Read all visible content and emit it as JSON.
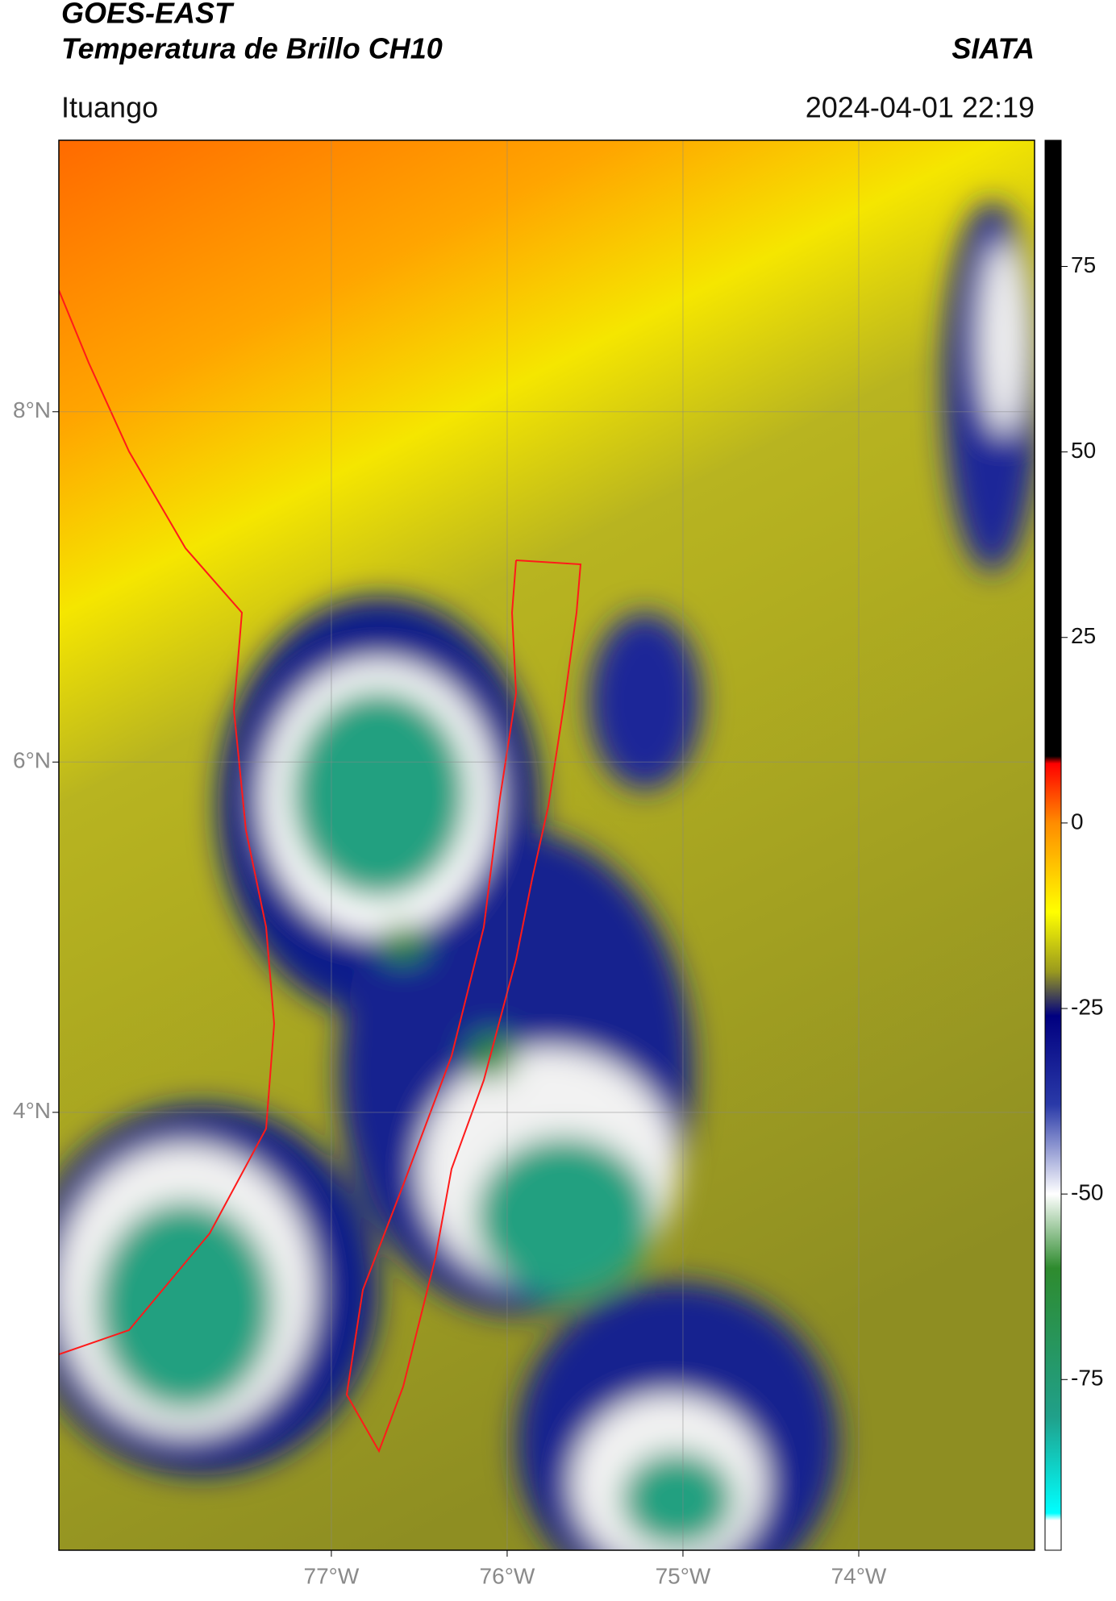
{
  "chart_data": {
    "type": "map",
    "title": "GOES-EAST",
    "subtitle": "Temperatura de Brillo CH10",
    "source": "SIATA",
    "location": "Ituango",
    "date": "2024-04-01 22:19",
    "xlim": [
      -78.55,
      -73.0
    ],
    "ylim": [
      1.5,
      9.55
    ],
    "xticks": [
      {
        "value": -77,
        "label": "77°W"
      },
      {
        "value": -76,
        "label": "76°W"
      },
      {
        "value": -75,
        "label": "75°W"
      },
      {
        "value": -74,
        "label": "74°W"
      }
    ],
    "yticks": [
      {
        "value": 8,
        "label": "8°N"
      },
      {
        "value": 6,
        "label": "6°N"
      },
      {
        "value": 4,
        "label": "4°N"
      }
    ],
    "grid": true,
    "colorbar": {
      "lim": [
        -98,
        92
      ],
      "ticks": [
        75,
        50,
        25,
        0,
        -25,
        -50,
        -75
      ],
      "colorscale": [
        {
          "value": 92,
          "color": "#000000"
        },
        {
          "value": 9,
          "color": "#000000"
        },
        {
          "value": 8,
          "color": "#ff0000"
        },
        {
          "value": 0,
          "color": "#ff8c00"
        },
        {
          "value": -12,
          "color": "#ffff00"
        },
        {
          "value": -20,
          "color": "#9a9a1e"
        },
        {
          "value": -26,
          "color": "#000080"
        },
        {
          "value": -38,
          "color": "#2a3aa8"
        },
        {
          "value": -50,
          "color": "#ffffff"
        },
        {
          "value": -60,
          "color": "#2e8b2e"
        },
        {
          "value": -80,
          "color": "#20a08a"
        },
        {
          "value": -93,
          "color": "#00ffff"
        },
        {
          "value": -94,
          "color": "#ffffff"
        },
        {
          "value": -98,
          "color": "#ffffff"
        }
      ]
    }
  }
}
